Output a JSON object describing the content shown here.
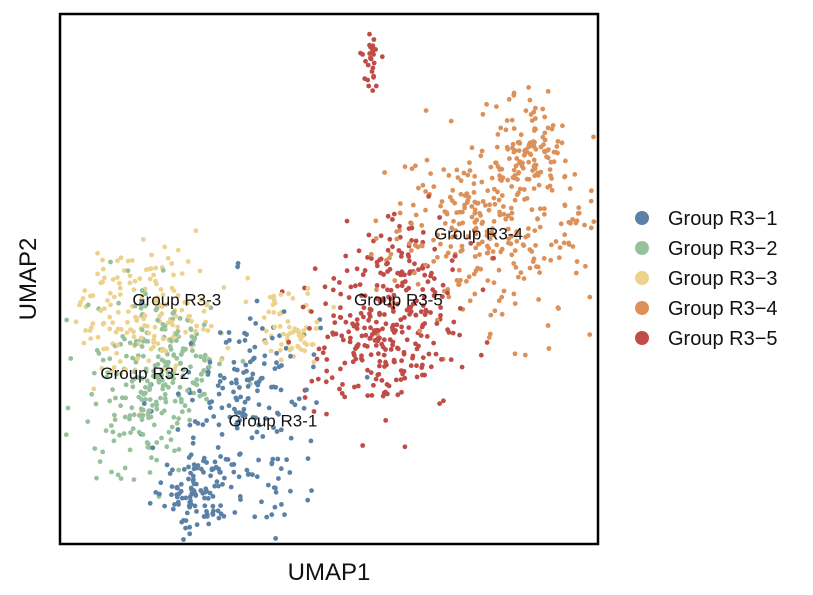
{
  "chart_data": {
    "type": "scatter",
    "title": "",
    "xlabel": "UMAP1",
    "ylabel": "UMAP2",
    "xlim": [
      0,
      10
    ],
    "ylim": [
      0,
      10
    ],
    "grid": false,
    "legend_position": "right",
    "point_counts": {
      "Group R3-1": 300,
      "Group R3-2": 260,
      "Group R3-3": 240,
      "Group R3-4": 420,
      "Group R3-5": 330,
      "outlier": 30
    },
    "series": [
      {
        "name": "Group R3-1",
        "color": "#5b82a6",
        "clusters": [
          {
            "cx": 3.3,
            "cy": 2.2,
            "sx": 0.75,
            "sy": 1.2,
            "w": 0.55
          },
          {
            "cx": 2.5,
            "cy": 0.9,
            "sx": 0.3,
            "sy": 0.4,
            "w": 0.3
          },
          {
            "cx": 3.7,
            "cy": 3.4,
            "sx": 0.4,
            "sy": 0.5,
            "w": 0.15
          }
        ]
      },
      {
        "name": "Group R3-2",
        "color": "#96c19b",
        "clusters": [
          {
            "cx": 1.5,
            "cy": 2.8,
            "sx": 0.55,
            "sy": 0.9,
            "w": 0.6
          },
          {
            "cx": 2.2,
            "cy": 3.5,
            "sx": 0.45,
            "sy": 0.55,
            "w": 0.4
          }
        ]
      },
      {
        "name": "Group R3-3",
        "color": "#ecd28c",
        "clusters": [
          {
            "cx": 1.6,
            "cy": 4.4,
            "sx": 0.65,
            "sy": 0.6,
            "w": 0.75
          },
          {
            "cx": 4.3,
            "cy": 4.1,
            "sx": 0.35,
            "sy": 0.35,
            "w": 0.25
          }
        ]
      },
      {
        "name": "Group R3-4",
        "color": "#dd915a",
        "clusters": [
          {
            "cx": 8.1,
            "cy": 6.0,
            "sx": 1.0,
            "sy": 0.9,
            "w": 0.8
          },
          {
            "cx": 8.8,
            "cy": 7.6,
            "sx": 0.3,
            "sy": 0.4,
            "w": 0.2
          }
        ]
      },
      {
        "name": "Group R3-5",
        "color": "#c04c48",
        "clusters": [
          {
            "cx": 6.0,
            "cy": 3.8,
            "sx": 0.75,
            "sy": 0.65,
            "w": 0.7
          },
          {
            "cx": 6.4,
            "cy": 5.2,
            "sx": 0.55,
            "sy": 0.5,
            "w": 0.3
          }
        ],
        "outlier_cluster": {
          "cx": 5.8,
          "cy": 9.1,
          "sx": 0.08,
          "sy": 0.3
        }
      }
    ],
    "cluster_labels": [
      {
        "text": "Group R3-1",
        "x": 3.95,
        "y": 2.2
      },
      {
        "text": "Group R3-2",
        "x": 1.55,
        "y": 3.1
      },
      {
        "text": "Group R3-3",
        "x": 2.15,
        "y": 4.5
      },
      {
        "text": "Group R3-4",
        "x": 7.8,
        "y": 5.75
      },
      {
        "text": "Group R3-5",
        "x": 6.3,
        "y": 4.5
      }
    ]
  },
  "legend": {
    "items": [
      {
        "label": "Group R3−1",
        "color": "#5b82a6"
      },
      {
        "label": "Group R3−2",
        "color": "#96c19b"
      },
      {
        "label": "Group R3−3",
        "color": "#ecd28c"
      },
      {
        "label": "Group R3−4",
        "color": "#dd915a"
      },
      {
        "label": "Group R3−5",
        "color": "#c04c48"
      }
    ]
  }
}
